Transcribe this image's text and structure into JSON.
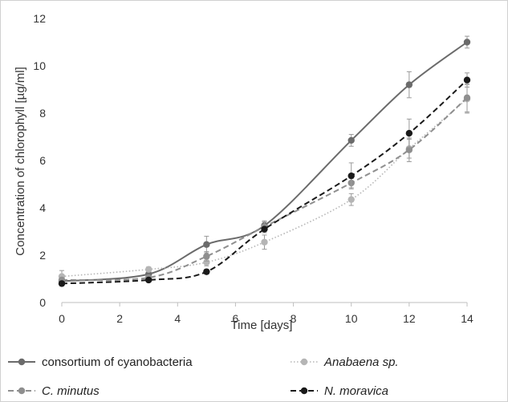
{
  "chart_data": {
    "type": "line",
    "xlabel": "Time [days]",
    "ylabel": "Concentration of chlorophyll [µg/ml]",
    "xlim": [
      0,
      14
    ],
    "ylim": [
      0,
      12
    ],
    "xticks": [
      "0",
      "2",
      "4",
      "6",
      "8",
      "10",
      "12",
      "14"
    ],
    "yticks": [
      "0",
      "2",
      "4",
      "6",
      "8",
      "10",
      "12"
    ],
    "grid": false,
    "legend_position": "bottom",
    "x": [
      0,
      3,
      5,
      7,
      10,
      12,
      14
    ],
    "series": [
      {
        "name": "consortium of cyanobacteria",
        "italic": false,
        "color": "#6b6b6b",
        "line_style": "solid",
        "values": [
          0.9,
          1.2,
          2.45,
          3.25,
          6.85,
          9.2,
          11.0
        ],
        "errors": [
          0.15,
          0.1,
          0.35,
          0.2,
          0.25,
          0.55,
          0.25
        ]
      },
      {
        "name": "Anabaena sp.",
        "italic": true,
        "color": "#b5b5b5",
        "line_style": "dotted",
        "values": [
          1.1,
          1.4,
          1.7,
          2.55,
          4.35,
          6.5,
          8.6
        ],
        "errors": [
          0.25,
          0.1,
          0.15,
          0.3,
          0.25,
          0.4,
          0.6
        ]
      },
      {
        "name": "C. minutus",
        "italic": true,
        "color": "#8f8f8f",
        "line_style": "dashed",
        "values": [
          0.95,
          1.05,
          1.95,
          3.2,
          5.05,
          6.45,
          8.65
        ],
        "errors": [
          0.1,
          0.1,
          0.2,
          0.2,
          0.2,
          0.5,
          0.6
        ]
      },
      {
        "name": "N. moravica",
        "italic": true,
        "color": "#1a1a1a",
        "line_style": "dashed",
        "values": [
          0.8,
          0.95,
          1.3,
          3.1,
          5.35,
          7.15,
          9.4
        ],
        "errors": [
          0.1,
          0.08,
          0.1,
          0.15,
          0.55,
          0.6,
          0.3
        ]
      }
    ]
  }
}
